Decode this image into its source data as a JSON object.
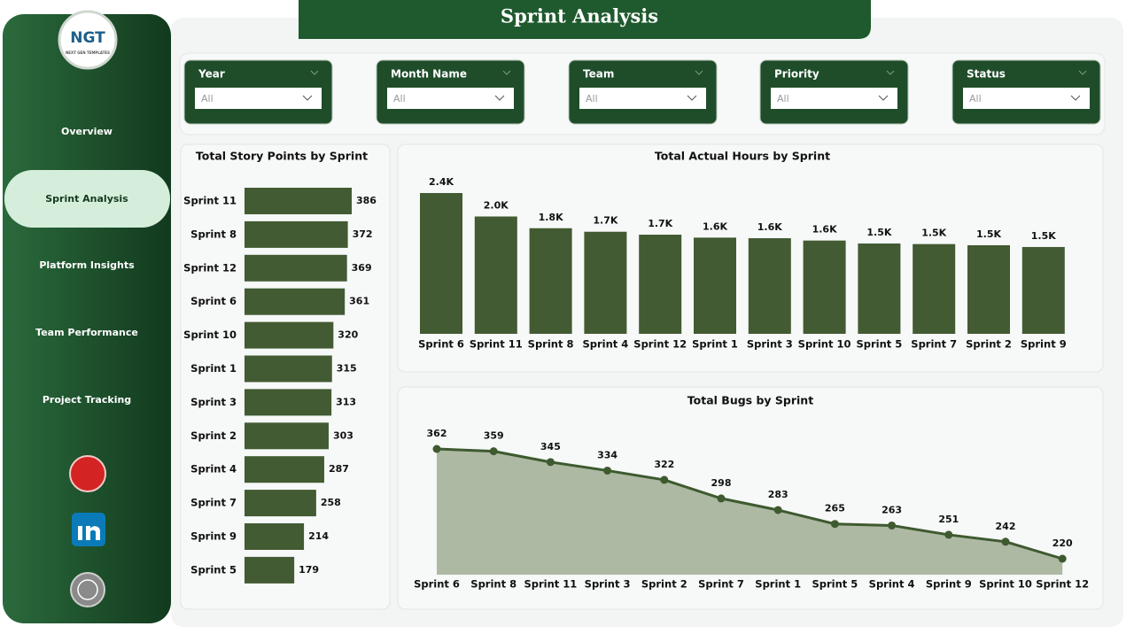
{
  "header": {
    "title": "Sprint Analysis"
  },
  "logo": {
    "text": "NGT",
    "subtext": "NEXT GEN TEMPLATES"
  },
  "nav": [
    "Overview",
    "Sprint Analysis",
    "Platform Insights",
    "Team Performance",
    "Project Tracking"
  ],
  "filters": [
    {
      "label": "Year",
      "value": "All"
    },
    {
      "label": "Month Name",
      "value": "All"
    },
    {
      "label": "Team",
      "value": "All"
    },
    {
      "label": "Priority",
      "value": "All"
    },
    {
      "label": "Status",
      "value": "All"
    }
  ],
  "chart_data": [
    {
      "type": "bar",
      "orientation": "horizontal",
      "title": "Total Story Points by Sprint",
      "categories": [
        "Sprint 11",
        "Sprint 8",
        "Sprint 12",
        "Sprint 6",
        "Sprint 10",
        "Sprint 1",
        "Sprint 3",
        "Sprint 2",
        "Sprint 4",
        "Sprint 7",
        "Sprint 9",
        "Sprint 5"
      ],
      "values": [
        386,
        372,
        369,
        361,
        320,
        315,
        313,
        303,
        287,
        258,
        214,
        179
      ],
      "color": "#425b32"
    },
    {
      "type": "bar",
      "orientation": "vertical",
      "title": "Total Actual Hours by Sprint",
      "categories": [
        "Sprint 6",
        "Sprint 11",
        "Sprint 8",
        "Sprint 4",
        "Sprint 12",
        "Sprint 1",
        "Sprint 3",
        "Sprint 10",
        "Sprint 5",
        "Sprint 7",
        "Sprint 2",
        "Sprint 9"
      ],
      "values": [
        2400,
        2000,
        1800,
        1740,
        1690,
        1640,
        1630,
        1590,
        1540,
        1530,
        1510,
        1480
      ],
      "value_labels": [
        "2.4K",
        "2.0K",
        "1.8K",
        "1.7K",
        "1.7K",
        "1.6K",
        "1.6K",
        "1.6K",
        "1.5K",
        "1.5K",
        "1.5K",
        "1.5K"
      ],
      "color": "#425b32"
    },
    {
      "type": "area",
      "title": "Total Bugs by Sprint",
      "categories": [
        "Sprint 6",
        "Sprint 8",
        "Sprint 11",
        "Sprint 3",
        "Sprint 2",
        "Sprint 7",
        "Sprint 1",
        "Sprint 5",
        "Sprint 4",
        "Sprint 9",
        "Sprint 10",
        "Sprint 12"
      ],
      "values": [
        362,
        359,
        345,
        334,
        322,
        298,
        283,
        265,
        263,
        251,
        242,
        220
      ],
      "color": "#3e5a2f",
      "fill": "#adb9a3"
    }
  ]
}
